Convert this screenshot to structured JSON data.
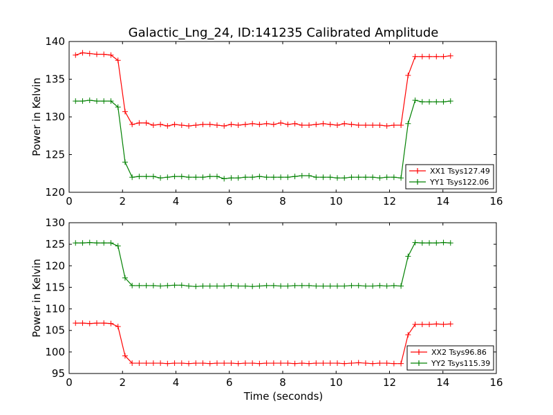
{
  "chart_data": [
    {
      "type": "line",
      "title": "Galactic_Lng_24, ID:141235 Calibrated Amplitude",
      "xlabel": "",
      "ylabel": "Power in Kelvin",
      "xlim": [
        0,
        16
      ],
      "ylim": [
        120,
        140
      ],
      "xticks": [
        0,
        2,
        4,
        6,
        8,
        10,
        12,
        14,
        16
      ],
      "yticks": [
        120,
        125,
        130,
        135,
        140
      ],
      "legend_position": "lower-right",
      "x_start": 0.24,
      "x_step": 0.265,
      "series": [
        {
          "name": "XX1 Tsys127.49",
          "color": "#ff0000",
          "values": [
            138.2,
            138.5,
            138.4,
            138.3,
            138.3,
            138.2,
            137.5,
            130.7,
            129.0,
            129.2,
            129.2,
            128.9,
            129.0,
            128.8,
            129.0,
            128.9,
            128.8,
            128.9,
            129.0,
            129.0,
            128.9,
            128.8,
            129.0,
            128.9,
            129.0,
            129.1,
            129.0,
            129.1,
            129.0,
            129.2,
            129.0,
            129.1,
            128.9,
            128.9,
            129.0,
            129.1,
            129.0,
            128.9,
            129.1,
            129.0,
            128.9,
            128.9,
            128.9,
            128.9,
            128.8,
            128.9,
            128.9,
            135.5,
            138.0,
            138.0,
            138.0,
            138.0,
            138.0,
            138.1
          ]
        },
        {
          "name": "YY1 Tsys122.06",
          "color": "#008000",
          "values": [
            132.1,
            132.1,
            132.2,
            132.1,
            132.1,
            132.1,
            131.3,
            124.0,
            122.0,
            122.1,
            122.1,
            122.1,
            121.9,
            122.0,
            122.1,
            122.1,
            122.0,
            122.0,
            122.0,
            122.1,
            122.1,
            121.8,
            121.9,
            121.9,
            122.0,
            122.0,
            122.1,
            122.0,
            122.0,
            122.0,
            122.0,
            122.1,
            122.2,
            122.2,
            122.0,
            122.0,
            122.0,
            121.9,
            121.9,
            122.0,
            122.0,
            122.0,
            122.0,
            121.9,
            122.0,
            122.0,
            121.9,
            129.1,
            132.2,
            132.0,
            132.0,
            132.0,
            132.0,
            132.1
          ]
        }
      ]
    },
    {
      "type": "line",
      "title": "",
      "xlabel": "Time (seconds)",
      "ylabel": "Power in Kelvin",
      "xlim": [
        0,
        16
      ],
      "ylim": [
        95,
        130
      ],
      "xticks": [
        0,
        2,
        4,
        6,
        8,
        10,
        12,
        14,
        16
      ],
      "yticks": [
        95,
        100,
        105,
        110,
        115,
        120,
        125,
        130
      ],
      "legend_position": "lower-right",
      "x_start": 0.24,
      "x_step": 0.265,
      "series": [
        {
          "name": "XX2 Tsys96.86",
          "color": "#ff0000",
          "values": [
            106.7,
            106.7,
            106.6,
            106.7,
            106.7,
            106.6,
            105.9,
            99.1,
            97.4,
            97.4,
            97.4,
            97.4,
            97.4,
            97.3,
            97.4,
            97.4,
            97.3,
            97.4,
            97.4,
            97.3,
            97.4,
            97.4,
            97.4,
            97.3,
            97.4,
            97.4,
            97.3,
            97.4,
            97.4,
            97.4,
            97.4,
            97.3,
            97.4,
            97.3,
            97.4,
            97.4,
            97.4,
            97.4,
            97.3,
            97.4,
            97.5,
            97.4,
            97.3,
            97.4,
            97.4,
            97.3,
            97.3,
            104.0,
            106.4,
            106.4,
            106.4,
            106.5,
            106.4,
            106.5
          ]
        },
        {
          "name": "YY2 Tsys115.39",
          "color": "#008000",
          "values": [
            125.3,
            125.3,
            125.4,
            125.3,
            125.3,
            125.3,
            124.6,
            117.2,
            115.4,
            115.4,
            115.4,
            115.4,
            115.3,
            115.4,
            115.5,
            115.5,
            115.3,
            115.2,
            115.3,
            115.3,
            115.3,
            115.3,
            115.4,
            115.3,
            115.3,
            115.2,
            115.3,
            115.4,
            115.4,
            115.3,
            115.3,
            115.4,
            115.4,
            115.4,
            115.3,
            115.3,
            115.3,
            115.3,
            115.3,
            115.4,
            115.4,
            115.3,
            115.3,
            115.4,
            115.3,
            115.4,
            115.3,
            122.2,
            125.4,
            125.3,
            125.3,
            125.3,
            125.4,
            125.3
          ]
        }
      ]
    }
  ]
}
